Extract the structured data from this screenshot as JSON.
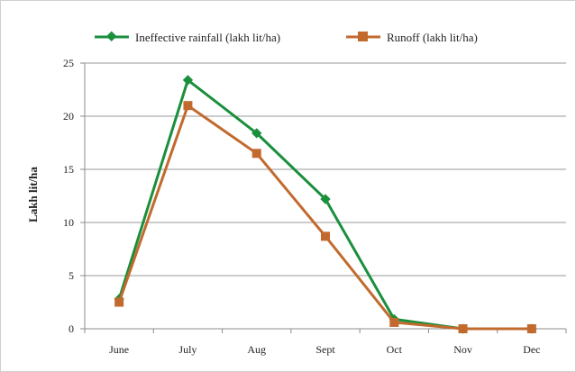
{
  "chart_data": {
    "type": "line",
    "title": "",
    "xlabel": "",
    "ylabel": "Lakh lit/ha",
    "categories": [
      "June",
      "July",
      "Aug",
      "Sept",
      "Oct",
      "Nov",
      "Dec"
    ],
    "ylim": [
      0,
      25
    ],
    "yticks": [
      "0",
      "5",
      "10",
      "15",
      "20",
      "25"
    ],
    "grid": true,
    "legend_position": "top",
    "series": [
      {
        "name": "Ineffective rainfall (lakh lit/ha)",
        "marker": "diamond",
        "color": "#1a8f3c",
        "values": [
          2.8,
          23.4,
          18.4,
          12.2,
          0.9,
          0.0,
          0.0
        ]
      },
      {
        "name": "Runoff (lakh lit/ha)",
        "marker": "square",
        "color": "#c26a2e",
        "values": [
          2.5,
          21.0,
          16.5,
          8.7,
          0.6,
          0.0,
          0.0
        ]
      }
    ]
  }
}
